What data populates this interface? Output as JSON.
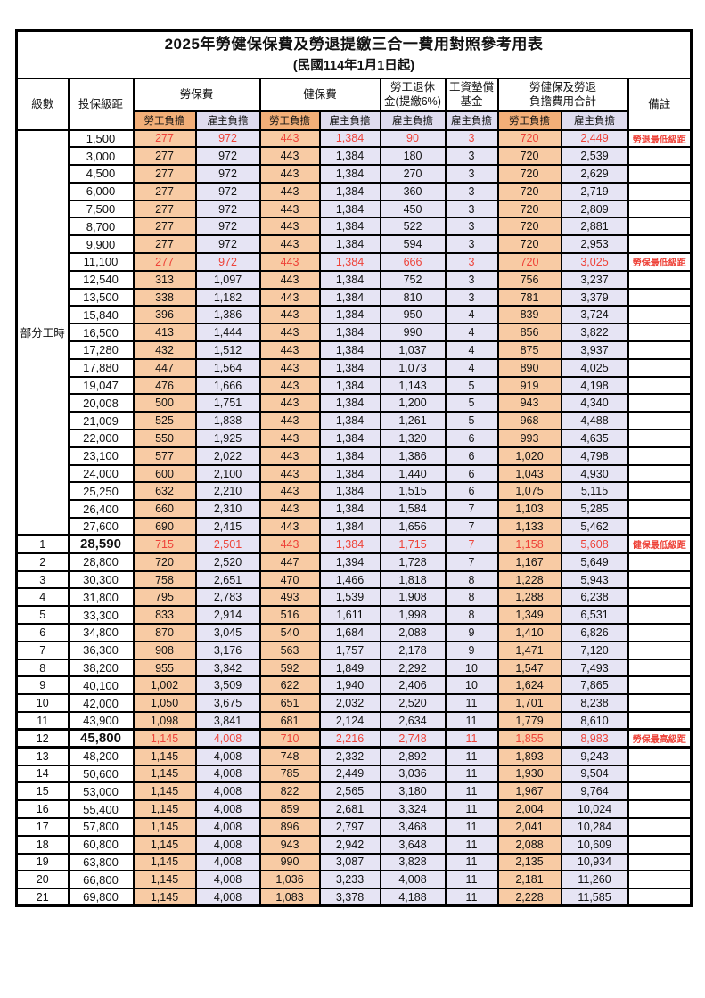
{
  "page": {
    "title": "2025年勞健保保費及勞退提繳三合一費用對照參考用表",
    "subtitle": "(民國114年1月1日起)"
  },
  "colors": {
    "employee_column_bg": "#F8CBA4",
    "employer_column_bg": "#E6E4F4",
    "employee_header_bg": "#F3AF78",
    "employer_header_bg": "#DFDCEF",
    "highlight_red": "#EE4238"
  },
  "header": {
    "level": "級數",
    "bracket": "投保級距",
    "labor_insurance": "勞保費",
    "health_insurance": "健保費",
    "pension_line1": "勞工退休",
    "pension_line2": "金(提繳6%)",
    "wage_fund_line1": "工資墊償",
    "wage_fund_line2": "基金",
    "total_line1": "勞健保及勞退",
    "total_line2": "負擔費用合計",
    "remark": "備註",
    "employee": "勞工負擔",
    "employer": "雇主負擔"
  },
  "part_time_label": "部分工時",
  "part_time_rowspan": 23,
  "rows": [
    {
      "level": "",
      "bracket": "1,500",
      "li_emp": "277",
      "li_er": "972",
      "hi_emp": "443",
      "hi_er": "1,384",
      "pension": "90",
      "fund": "3",
      "tot_emp": "720",
      "tot_er": "2,449",
      "remark": "勞退最低級距",
      "red": true,
      "bold": false,
      "thick": false
    },
    {
      "level": "",
      "bracket": "3,000",
      "li_emp": "277",
      "li_er": "972",
      "hi_emp": "443",
      "hi_er": "1,384",
      "pension": "180",
      "fund": "3",
      "tot_emp": "720",
      "tot_er": "2,539",
      "remark": "",
      "red": false,
      "bold": false,
      "thick": false
    },
    {
      "level": "",
      "bracket": "4,500",
      "li_emp": "277",
      "li_er": "972",
      "hi_emp": "443",
      "hi_er": "1,384",
      "pension": "270",
      "fund": "3",
      "tot_emp": "720",
      "tot_er": "2,629",
      "remark": "",
      "red": false,
      "bold": false,
      "thick": false
    },
    {
      "level": "",
      "bracket": "6,000",
      "li_emp": "277",
      "li_er": "972",
      "hi_emp": "443",
      "hi_er": "1,384",
      "pension": "360",
      "fund": "3",
      "tot_emp": "720",
      "tot_er": "2,719",
      "remark": "",
      "red": false,
      "bold": false,
      "thick": false
    },
    {
      "level": "",
      "bracket": "7,500",
      "li_emp": "277",
      "li_er": "972",
      "hi_emp": "443",
      "hi_er": "1,384",
      "pension": "450",
      "fund": "3",
      "tot_emp": "720",
      "tot_er": "2,809",
      "remark": "",
      "red": false,
      "bold": false,
      "thick": false
    },
    {
      "level": "",
      "bracket": "8,700",
      "li_emp": "277",
      "li_er": "972",
      "hi_emp": "443",
      "hi_er": "1,384",
      "pension": "522",
      "fund": "3",
      "tot_emp": "720",
      "tot_er": "2,881",
      "remark": "",
      "red": false,
      "bold": false,
      "thick": false
    },
    {
      "level": "",
      "bracket": "9,900",
      "li_emp": "277",
      "li_er": "972",
      "hi_emp": "443",
      "hi_er": "1,384",
      "pension": "594",
      "fund": "3",
      "tot_emp": "720",
      "tot_er": "2,953",
      "remark": "",
      "red": false,
      "bold": false,
      "thick": false
    },
    {
      "level": "",
      "bracket": "11,100",
      "li_emp": "277",
      "li_er": "972",
      "hi_emp": "443",
      "hi_er": "1,384",
      "pension": "666",
      "fund": "3",
      "tot_emp": "720",
      "tot_er": "3,025",
      "remark": "勞保最低級距",
      "red": true,
      "bold": false,
      "thick": false
    },
    {
      "level": "",
      "bracket": "12,540",
      "li_emp": "313",
      "li_er": "1,097",
      "hi_emp": "443",
      "hi_er": "1,384",
      "pension": "752",
      "fund": "3",
      "tot_emp": "756",
      "tot_er": "3,237",
      "remark": "",
      "red": false,
      "bold": false,
      "thick": false
    },
    {
      "level": "",
      "bracket": "13,500",
      "li_emp": "338",
      "li_er": "1,182",
      "hi_emp": "443",
      "hi_er": "1,384",
      "pension": "810",
      "fund": "3",
      "tot_emp": "781",
      "tot_er": "3,379",
      "remark": "",
      "red": false,
      "bold": false,
      "thick": false
    },
    {
      "level": "",
      "bracket": "15,840",
      "li_emp": "396",
      "li_er": "1,386",
      "hi_emp": "443",
      "hi_er": "1,384",
      "pension": "950",
      "fund": "4",
      "tot_emp": "839",
      "tot_er": "3,724",
      "remark": "",
      "red": false,
      "bold": false,
      "thick": false
    },
    {
      "level": "",
      "bracket": "16,500",
      "li_emp": "413",
      "li_er": "1,444",
      "hi_emp": "443",
      "hi_er": "1,384",
      "pension": "990",
      "fund": "4",
      "tot_emp": "856",
      "tot_er": "3,822",
      "remark": "",
      "red": false,
      "bold": false,
      "thick": false
    },
    {
      "level": "",
      "bracket": "17,280",
      "li_emp": "432",
      "li_er": "1,512",
      "hi_emp": "443",
      "hi_er": "1,384",
      "pension": "1,037",
      "fund": "4",
      "tot_emp": "875",
      "tot_er": "3,937",
      "remark": "",
      "red": false,
      "bold": false,
      "thick": false
    },
    {
      "level": "",
      "bracket": "17,880",
      "li_emp": "447",
      "li_er": "1,564",
      "hi_emp": "443",
      "hi_er": "1,384",
      "pension": "1,073",
      "fund": "4",
      "tot_emp": "890",
      "tot_er": "4,025",
      "remark": "",
      "red": false,
      "bold": false,
      "thick": false
    },
    {
      "level": "",
      "bracket": "19,047",
      "li_emp": "476",
      "li_er": "1,666",
      "hi_emp": "443",
      "hi_er": "1,384",
      "pension": "1,143",
      "fund": "5",
      "tot_emp": "919",
      "tot_er": "4,198",
      "remark": "",
      "red": false,
      "bold": false,
      "thick": false
    },
    {
      "level": "",
      "bracket": "20,008",
      "li_emp": "500",
      "li_er": "1,751",
      "hi_emp": "443",
      "hi_er": "1,384",
      "pension": "1,200",
      "fund": "5",
      "tot_emp": "943",
      "tot_er": "4,340",
      "remark": "",
      "red": false,
      "bold": false,
      "thick": false
    },
    {
      "level": "",
      "bracket": "21,009",
      "li_emp": "525",
      "li_er": "1,838",
      "hi_emp": "443",
      "hi_er": "1,384",
      "pension": "1,261",
      "fund": "5",
      "tot_emp": "968",
      "tot_er": "4,488",
      "remark": "",
      "red": false,
      "bold": false,
      "thick": false
    },
    {
      "level": "",
      "bracket": "22,000",
      "li_emp": "550",
      "li_er": "1,925",
      "hi_emp": "443",
      "hi_er": "1,384",
      "pension": "1,320",
      "fund": "6",
      "tot_emp": "993",
      "tot_er": "4,635",
      "remark": "",
      "red": false,
      "bold": false,
      "thick": false
    },
    {
      "level": "",
      "bracket": "23,100",
      "li_emp": "577",
      "li_er": "2,022",
      "hi_emp": "443",
      "hi_er": "1,384",
      "pension": "1,386",
      "fund": "6",
      "tot_emp": "1,020",
      "tot_er": "4,798",
      "remark": "",
      "red": false,
      "bold": false,
      "thick": false
    },
    {
      "level": "",
      "bracket": "24,000",
      "li_emp": "600",
      "li_er": "2,100",
      "hi_emp": "443",
      "hi_er": "1,384",
      "pension": "1,440",
      "fund": "6",
      "tot_emp": "1,043",
      "tot_er": "4,930",
      "remark": "",
      "red": false,
      "bold": false,
      "thick": false
    },
    {
      "level": "",
      "bracket": "25,250",
      "li_emp": "632",
      "li_er": "2,210",
      "hi_emp": "443",
      "hi_er": "1,384",
      "pension": "1,515",
      "fund": "6",
      "tot_emp": "1,075",
      "tot_er": "5,115",
      "remark": "",
      "red": false,
      "bold": false,
      "thick": false
    },
    {
      "level": "",
      "bracket": "26,400",
      "li_emp": "660",
      "li_er": "2,310",
      "hi_emp": "443",
      "hi_er": "1,384",
      "pension": "1,584",
      "fund": "7",
      "tot_emp": "1,103",
      "tot_er": "5,285",
      "remark": "",
      "red": false,
      "bold": false,
      "thick": false
    },
    {
      "level": "",
      "bracket": "27,600",
      "li_emp": "690",
      "li_er": "2,415",
      "hi_emp": "443",
      "hi_er": "1,384",
      "pension": "1,656",
      "fund": "7",
      "tot_emp": "1,133",
      "tot_er": "5,462",
      "remark": "",
      "red": false,
      "bold": false,
      "thick": false
    },
    {
      "level": "1",
      "bracket": "28,590",
      "li_emp": "715",
      "li_er": "2,501",
      "hi_emp": "443",
      "hi_er": "1,384",
      "pension": "1,715",
      "fund": "7",
      "tot_emp": "1,158",
      "tot_er": "5,608",
      "remark": "健保最低級距",
      "red": true,
      "bold": true,
      "thick": true
    },
    {
      "level": "2",
      "bracket": "28,800",
      "li_emp": "720",
      "li_er": "2,520",
      "hi_emp": "447",
      "hi_er": "1,394",
      "pension": "1,728",
      "fund": "7",
      "tot_emp": "1,167",
      "tot_er": "5,649",
      "remark": "",
      "red": false,
      "bold": false,
      "thick": false
    },
    {
      "level": "3",
      "bracket": "30,300",
      "li_emp": "758",
      "li_er": "2,651",
      "hi_emp": "470",
      "hi_er": "1,466",
      "pension": "1,818",
      "fund": "8",
      "tot_emp": "1,228",
      "tot_er": "5,943",
      "remark": "",
      "red": false,
      "bold": false,
      "thick": false
    },
    {
      "level": "4",
      "bracket": "31,800",
      "li_emp": "795",
      "li_er": "2,783",
      "hi_emp": "493",
      "hi_er": "1,539",
      "pension": "1,908",
      "fund": "8",
      "tot_emp": "1,288",
      "tot_er": "6,238",
      "remark": "",
      "red": false,
      "bold": false,
      "thick": false
    },
    {
      "level": "5",
      "bracket": "33,300",
      "li_emp": "833",
      "li_er": "2,914",
      "hi_emp": "516",
      "hi_er": "1,611",
      "pension": "1,998",
      "fund": "8",
      "tot_emp": "1,349",
      "tot_er": "6,531",
      "remark": "",
      "red": false,
      "bold": false,
      "thick": false
    },
    {
      "level": "6",
      "bracket": "34,800",
      "li_emp": "870",
      "li_er": "3,045",
      "hi_emp": "540",
      "hi_er": "1,684",
      "pension": "2,088",
      "fund": "9",
      "tot_emp": "1,410",
      "tot_er": "6,826",
      "remark": "",
      "red": false,
      "bold": false,
      "thick": false
    },
    {
      "level": "7",
      "bracket": "36,300",
      "li_emp": "908",
      "li_er": "3,176",
      "hi_emp": "563",
      "hi_er": "1,757",
      "pension": "2,178",
      "fund": "9",
      "tot_emp": "1,471",
      "tot_er": "7,120",
      "remark": "",
      "red": false,
      "bold": false,
      "thick": false
    },
    {
      "level": "8",
      "bracket": "38,200",
      "li_emp": "955",
      "li_er": "3,342",
      "hi_emp": "592",
      "hi_er": "1,849",
      "pension": "2,292",
      "fund": "10",
      "tot_emp": "1,547",
      "tot_er": "7,493",
      "remark": "",
      "red": false,
      "bold": false,
      "thick": false
    },
    {
      "level": "9",
      "bracket": "40,100",
      "li_emp": "1,002",
      "li_er": "3,509",
      "hi_emp": "622",
      "hi_er": "1,940",
      "pension": "2,406",
      "fund": "10",
      "tot_emp": "1,624",
      "tot_er": "7,865",
      "remark": "",
      "red": false,
      "bold": false,
      "thick": false
    },
    {
      "level": "10",
      "bracket": "42,000",
      "li_emp": "1,050",
      "li_er": "3,675",
      "hi_emp": "651",
      "hi_er": "2,032",
      "pension": "2,520",
      "fund": "11",
      "tot_emp": "1,701",
      "tot_er": "8,238",
      "remark": "",
      "red": false,
      "bold": false,
      "thick": false
    },
    {
      "level": "11",
      "bracket": "43,900",
      "li_emp": "1,098",
      "li_er": "3,841",
      "hi_emp": "681",
      "hi_er": "2,124",
      "pension": "2,634",
      "fund": "11",
      "tot_emp": "1,779",
      "tot_er": "8,610",
      "remark": "",
      "red": false,
      "bold": false,
      "thick": false
    },
    {
      "level": "12",
      "bracket": "45,800",
      "li_emp": "1,145",
      "li_er": "4,008",
      "hi_emp": "710",
      "hi_er": "2,216",
      "pension": "2,748",
      "fund": "11",
      "tot_emp": "1,855",
      "tot_er": "8,983",
      "remark": "勞保最高級距",
      "red": true,
      "bold": true,
      "thick": true
    },
    {
      "level": "13",
      "bracket": "48,200",
      "li_emp": "1,145",
      "li_er": "4,008",
      "hi_emp": "748",
      "hi_er": "2,332",
      "pension": "2,892",
      "fund": "11",
      "tot_emp": "1,893",
      "tot_er": "9,243",
      "remark": "",
      "red": false,
      "bold": false,
      "thick": false
    },
    {
      "level": "14",
      "bracket": "50,600",
      "li_emp": "1,145",
      "li_er": "4,008",
      "hi_emp": "785",
      "hi_er": "2,449",
      "pension": "3,036",
      "fund": "11",
      "tot_emp": "1,930",
      "tot_er": "9,504",
      "remark": "",
      "red": false,
      "bold": false,
      "thick": false
    },
    {
      "level": "15",
      "bracket": "53,000",
      "li_emp": "1,145",
      "li_er": "4,008",
      "hi_emp": "822",
      "hi_er": "2,565",
      "pension": "3,180",
      "fund": "11",
      "tot_emp": "1,967",
      "tot_er": "9,764",
      "remark": "",
      "red": false,
      "bold": false,
      "thick": false
    },
    {
      "level": "16",
      "bracket": "55,400",
      "li_emp": "1,145",
      "li_er": "4,008",
      "hi_emp": "859",
      "hi_er": "2,681",
      "pension": "3,324",
      "fund": "11",
      "tot_emp": "2,004",
      "tot_er": "10,024",
      "remark": "",
      "red": false,
      "bold": false,
      "thick": false
    },
    {
      "level": "17",
      "bracket": "57,800",
      "li_emp": "1,145",
      "li_er": "4,008",
      "hi_emp": "896",
      "hi_er": "2,797",
      "pension": "3,468",
      "fund": "11",
      "tot_emp": "2,041",
      "tot_er": "10,284",
      "remark": "",
      "red": false,
      "bold": false,
      "thick": false
    },
    {
      "level": "18",
      "bracket": "60,800",
      "li_emp": "1,145",
      "li_er": "4,008",
      "hi_emp": "943",
      "hi_er": "2,942",
      "pension": "3,648",
      "fund": "11",
      "tot_emp": "2,088",
      "tot_er": "10,609",
      "remark": "",
      "red": false,
      "bold": false,
      "thick": false
    },
    {
      "level": "19",
      "bracket": "63,800",
      "li_emp": "1,145",
      "li_er": "4,008",
      "hi_emp": "990",
      "hi_er": "3,087",
      "pension": "3,828",
      "fund": "11",
      "tot_emp": "2,135",
      "tot_er": "10,934",
      "remark": "",
      "red": false,
      "bold": false,
      "thick": false
    },
    {
      "level": "20",
      "bracket": "66,800",
      "li_emp": "1,145",
      "li_er": "4,008",
      "hi_emp": "1,036",
      "hi_er": "3,233",
      "pension": "4,008",
      "fund": "11",
      "tot_emp": "2,181",
      "tot_er": "11,260",
      "remark": "",
      "red": false,
      "bold": false,
      "thick": false
    },
    {
      "level": "21",
      "bracket": "69,800",
      "li_emp": "1,145",
      "li_er": "4,008",
      "hi_emp": "1,083",
      "hi_er": "3,378",
      "pension": "4,188",
      "fund": "11",
      "tot_emp": "2,228",
      "tot_er": "11,585",
      "remark": "",
      "red": false,
      "bold": false,
      "thick": false
    }
  ]
}
